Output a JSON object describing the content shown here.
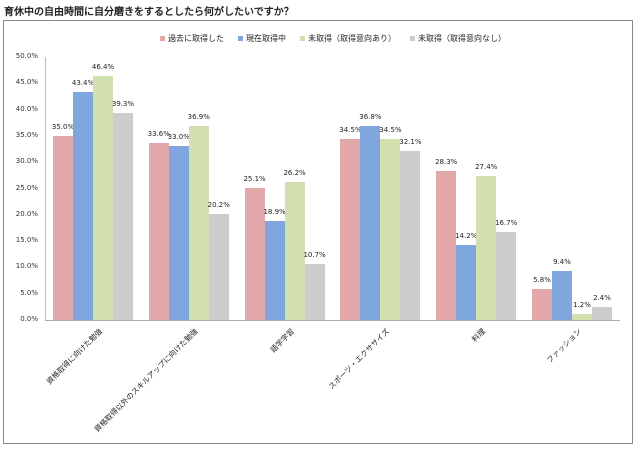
{
  "title": "育休中の自由時間に自分磨きをするとしたら何がしたいですか？",
  "chart_data": {
    "type": "bar",
    "title": "育休中の自由時間に自分磨きをするとしたら何がしたいですか？",
    "xlabel": "",
    "ylabel": "",
    "ylim": [
      0,
      50
    ],
    "yticks": [
      "50.0%",
      "45.0%",
      "40.0%",
      "35.0%",
      "30.0%",
      "25.0%",
      "20.0%",
      "15.0%",
      "10.0%",
      "5.0%",
      "0.0%"
    ],
    "grid": false,
    "legend_position": "top",
    "categories": [
      "資格取得に向けた勉強",
      "資格取得以外のスキルアップに向けた勉強",
      "語学学習",
      "スポーツ・エクササイズ",
      "料理",
      "ファッション"
    ],
    "series": [
      {
        "name": "過去に取得した",
        "color": "#e3a9aa",
        "values": [
          35.0,
          33.6,
          25.1,
          34.5,
          28.3,
          5.8
        ]
      },
      {
        "name": "現在取得中",
        "color": "#7fa6dd",
        "values": [
          43.4,
          33.0,
          18.9,
          36.8,
          14.2,
          9.4
        ]
      },
      {
        "name": "未取得（取得意向あり）",
        "color": "#d2dfaf",
        "values": [
          46.4,
          36.9,
          26.2,
          34.5,
          27.4,
          1.2
        ]
      },
      {
        "name": "未取得（取得意向なし）",
        "color": "#cccccc",
        "values": [
          39.3,
          20.2,
          10.7,
          32.1,
          16.7,
          2.4
        ]
      }
    ],
    "value_labels": [
      [
        "35.0%",
        "33.6%",
        "25.1%",
        "34.5%",
        "28.3%",
        "5.8%"
      ],
      [
        "43.4%",
        "33.0%",
        "18.9%",
        "36.8%",
        "14.2%",
        "9.4%"
      ],
      [
        "46.4%",
        "36.9%",
        "26.2%",
        "34.5%",
        "27.4%",
        "1.2%"
      ],
      [
        "39.3%",
        "20.2%",
        "10.7%",
        "32.1%",
        "16.7%",
        "2.4%"
      ]
    ]
  }
}
